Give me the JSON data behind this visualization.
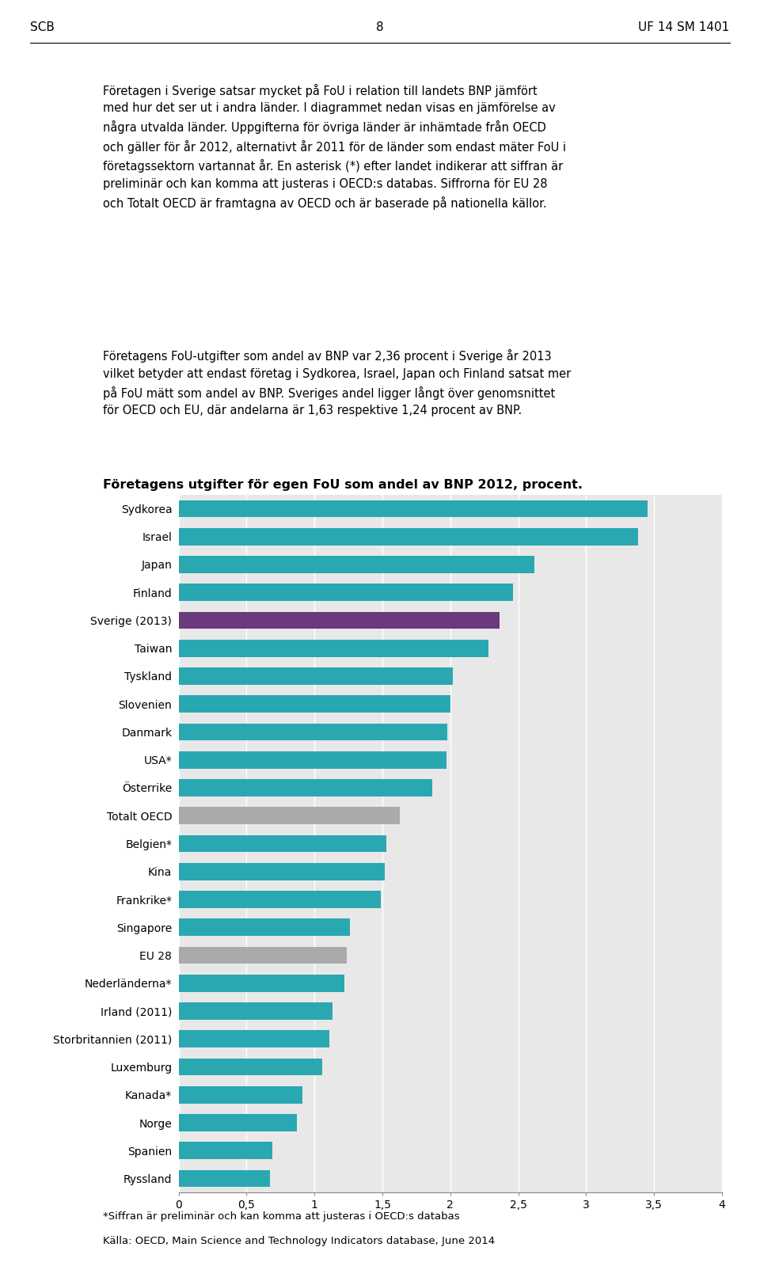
{
  "title": "Företagens utgifter för egen FoU som andel av BNP 2012, procent.",
  "header_left": "SCB",
  "header_center": "8",
  "header_right": "UF 14 SM 1401",
  "body_text1": "Företagen i Sverige satsar mycket på FoU i relation till landets BNP jämfört\nmed hur det ser ut i andra länder. I diagrammet nedan visas en jämförelse av\nnågra utvalda länder. Uppgifterna för övriga länder är inhämtade från OECD\noch gäller för år 2012, alternativt år 2011 för de länder som endast mäter FoU i\nföretagssektorn vartannat år. En asterisk (*) efter landet indikerar att siffran är\npreliminär och kan komma att justeras i OECD:s databas. Siffrorna för EU 28\noch Totalt OECD är framtagna av OECD och är baserade på nationella källor.",
  "body_text2": "Företagens FoU-utgifter som andel av BNP var 2,36 procent i Sverige år 2013\nvilket betyder att endast företag i Sydkorea, Israel, Japan och Finland satsat mer\npå FoU mätt som andel av BNP. Sveriges andel ligger långt över genomsnittet\nför OECD och EU, där andelarna är 1,63 respektive 1,24 procent av BNP.",
  "footnote1": "*Siffran är preliminär och kan komma att justeras i OECD:s databas",
  "footnote2": "Källa: OECD, Main Science and Technology Indicators database, June 2014",
  "categories": [
    "Sydkorea",
    "Israel",
    "Japan",
    "Finland",
    "Sverige (2013)",
    "Taiwan",
    "Tyskland",
    "Slovenien",
    "Danmark",
    "USA*",
    "Österrike",
    "Totalt OECD",
    "Belgien*",
    "Kina",
    "Frankrike*",
    "Singapore",
    "EU 28",
    "Nederländerna*",
    "Irland (2011)",
    "Storbritannien (2011)",
    "Luxemburg",
    "Kanada*",
    "Norge",
    "Spanien",
    "Ryssland"
  ],
  "values": [
    3.45,
    3.38,
    2.62,
    2.46,
    2.36,
    2.28,
    2.02,
    2.0,
    1.98,
    1.97,
    1.87,
    1.63,
    1.53,
    1.52,
    1.49,
    1.26,
    1.24,
    1.22,
    1.13,
    1.11,
    1.06,
    0.91,
    0.87,
    0.69,
    0.67
  ],
  "bar_colors": [
    "#2AA8B2",
    "#2AA8B2",
    "#2AA8B2",
    "#2AA8B2",
    "#6B3A7D",
    "#2AA8B2",
    "#2AA8B2",
    "#2AA8B2",
    "#2AA8B2",
    "#2AA8B2",
    "#2AA8B2",
    "#AAAAAA",
    "#2AA8B2",
    "#2AA8B2",
    "#2AA8B2",
    "#2AA8B2",
    "#AAAAAA",
    "#2AA8B2",
    "#2AA8B2",
    "#2AA8B2",
    "#2AA8B2",
    "#2AA8B2",
    "#2AA8B2",
    "#2AA8B2",
    "#2AA8B2"
  ],
  "xlim": [
    0,
    4
  ],
  "xticks": [
    0,
    0.5,
    1,
    1.5,
    2,
    2.5,
    3,
    3.5,
    4
  ],
  "xtick_labels": [
    "0",
    "0,5",
    "1",
    "1,5",
    "2",
    "2,5",
    "3",
    "3,5",
    "4"
  ],
  "plot_bg_color": "#E8E8E8",
  "grid_color": "#FFFFFF",
  "bar_height": 0.62
}
